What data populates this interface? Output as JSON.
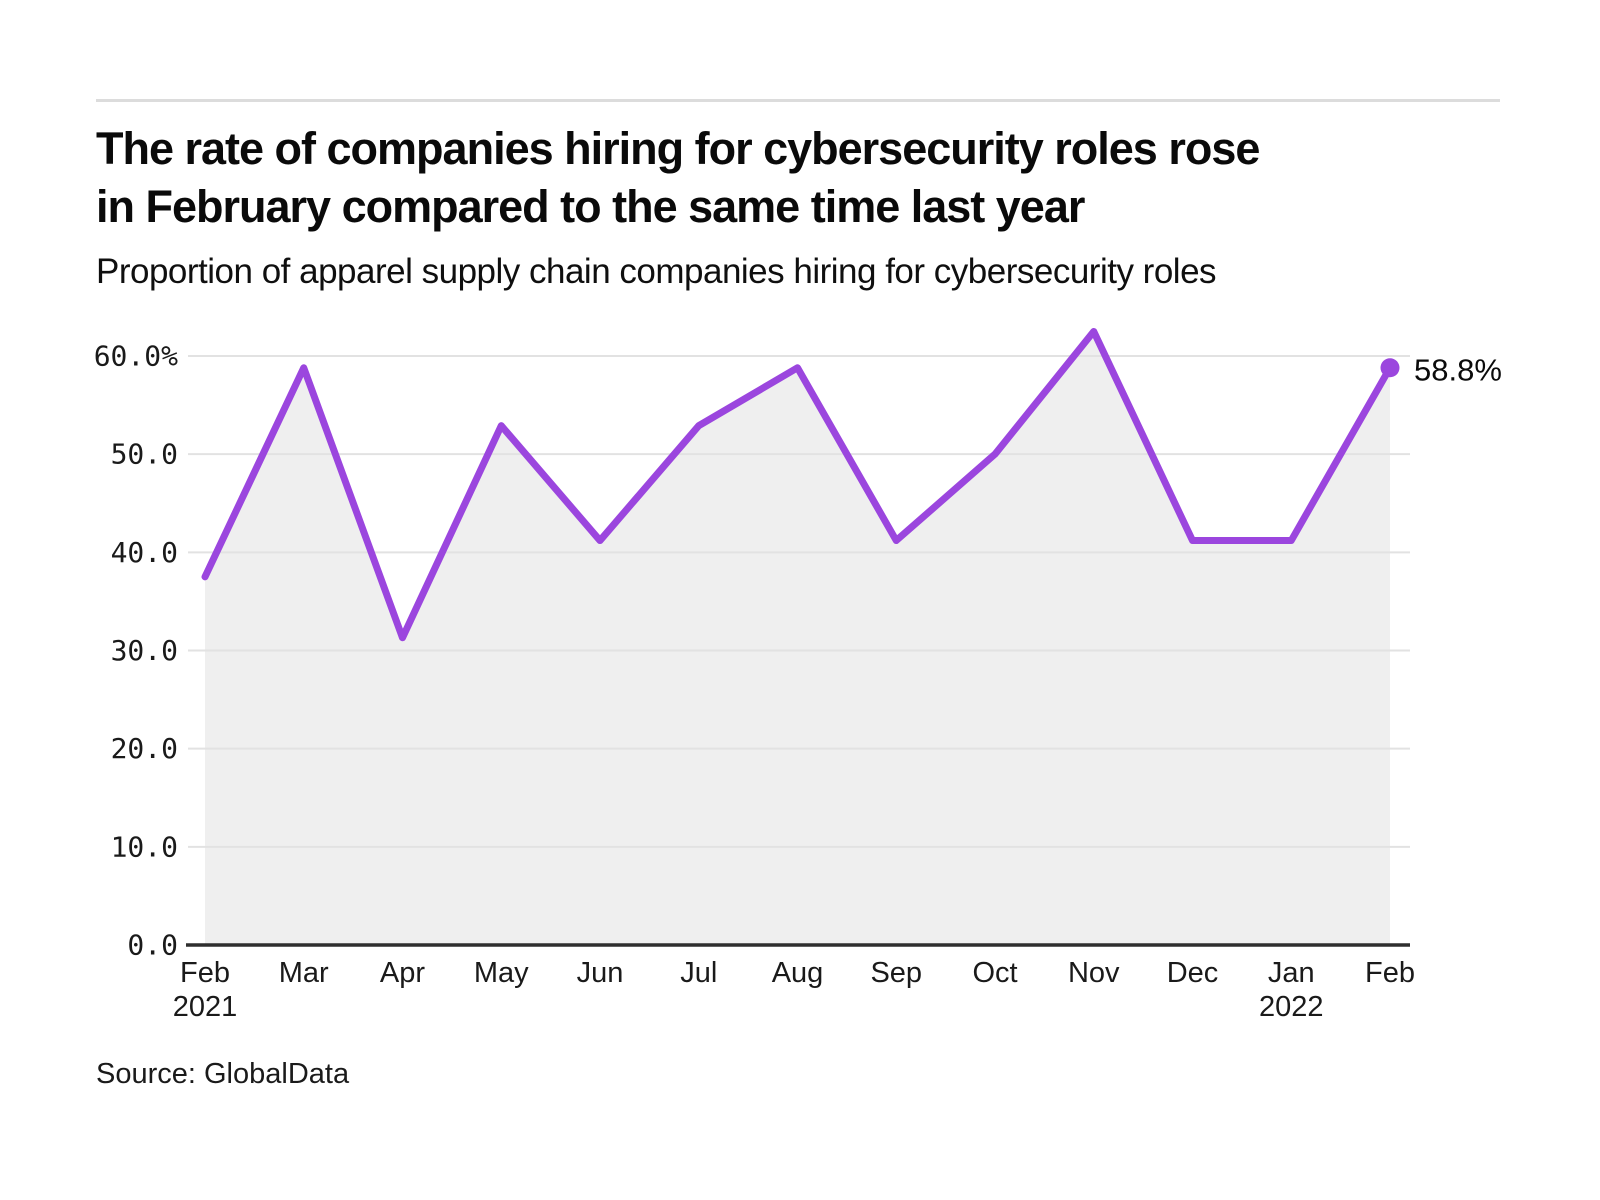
{
  "chart_data": {
    "type": "line",
    "title": "The rate of companies hiring for cybersecurity roles rose\nin February compared to the same time last year",
    "subtitle": "Proportion of apparel supply chain companies hiring for cybersecurity roles",
    "source": "Source: GlobalData",
    "categories": [
      "Feb",
      "Mar",
      "Apr",
      "May",
      "Jun",
      "Jul",
      "Aug",
      "Sep",
      "Oct",
      "Nov",
      "Dec",
      "Jan",
      "Feb"
    ],
    "category_years": {
      "0": "2021",
      "11": "2022"
    },
    "series": [
      {
        "name": "Proportion of apparel supply chain companies hiring for cybersecurity roles",
        "values": [
          37.5,
          58.8,
          31.3,
          52.9,
          41.2,
          52.9,
          58.8,
          41.2,
          50.0,
          62.5,
          41.2,
          41.2,
          58.8
        ]
      }
    ],
    "end_label": "58.8%",
    "xlabel": "",
    "ylabel": "",
    "ylim": [
      0,
      65
    ],
    "yticks": {
      "values": [
        60,
        50,
        40,
        30,
        20,
        10,
        0
      ],
      "labels": [
        "60.0%",
        "50.0",
        "40.0",
        "30.0",
        "20.0",
        "10.0",
        "0.0"
      ]
    },
    "grid": "horizontal",
    "legend": "none",
    "area_fill": true,
    "colors": {
      "line": "#9b46de",
      "marker": "#9b46de",
      "area": "#efefef",
      "grid": "#e2e2e2",
      "axis": "#2e2e2e",
      "text": "#1a1a1a",
      "rule": "#dcdcdc"
    }
  }
}
